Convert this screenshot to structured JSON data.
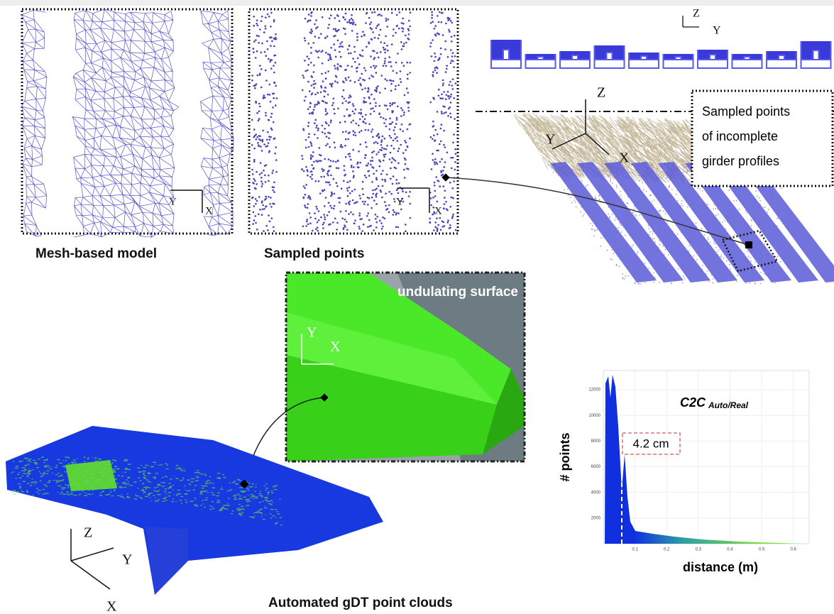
{
  "panels": {
    "mesh": {
      "label": "Mesh-based model",
      "axes": [
        "Y",
        "X"
      ]
    },
    "sampled": {
      "label": "Sampled points",
      "axes": [
        "Y",
        "X"
      ]
    },
    "profiles": {
      "axes": [
        "Z",
        "Y"
      ]
    },
    "bridge_scan": {
      "axes": [
        "Z",
        "Y",
        "X"
      ],
      "callout": [
        "Sampled points",
        "of incomplete",
        "girder profiles"
      ]
    },
    "render": {
      "label": "undulating surface",
      "axes": [
        "Y",
        "X"
      ]
    },
    "gdt": {
      "label": "Automated gDT point clouds",
      "axes": [
        "Z",
        "Y",
        "X"
      ]
    }
  },
  "histogram": {
    "title": "C2C",
    "title_subscript": "Auto/Real",
    "annotation": "4.2 cm",
    "xlabel": "distance (m)",
    "ylabel": "# points",
    "xlim": [
      0,
      0.65
    ],
    "ylim": [
      0,
      13500
    ],
    "xticks": [
      0.1,
      0.2,
      0.3,
      0.4,
      0.5,
      0.6
    ],
    "yticks": [
      2000,
      4000,
      6000,
      8000,
      10000,
      12000
    ]
  }
}
